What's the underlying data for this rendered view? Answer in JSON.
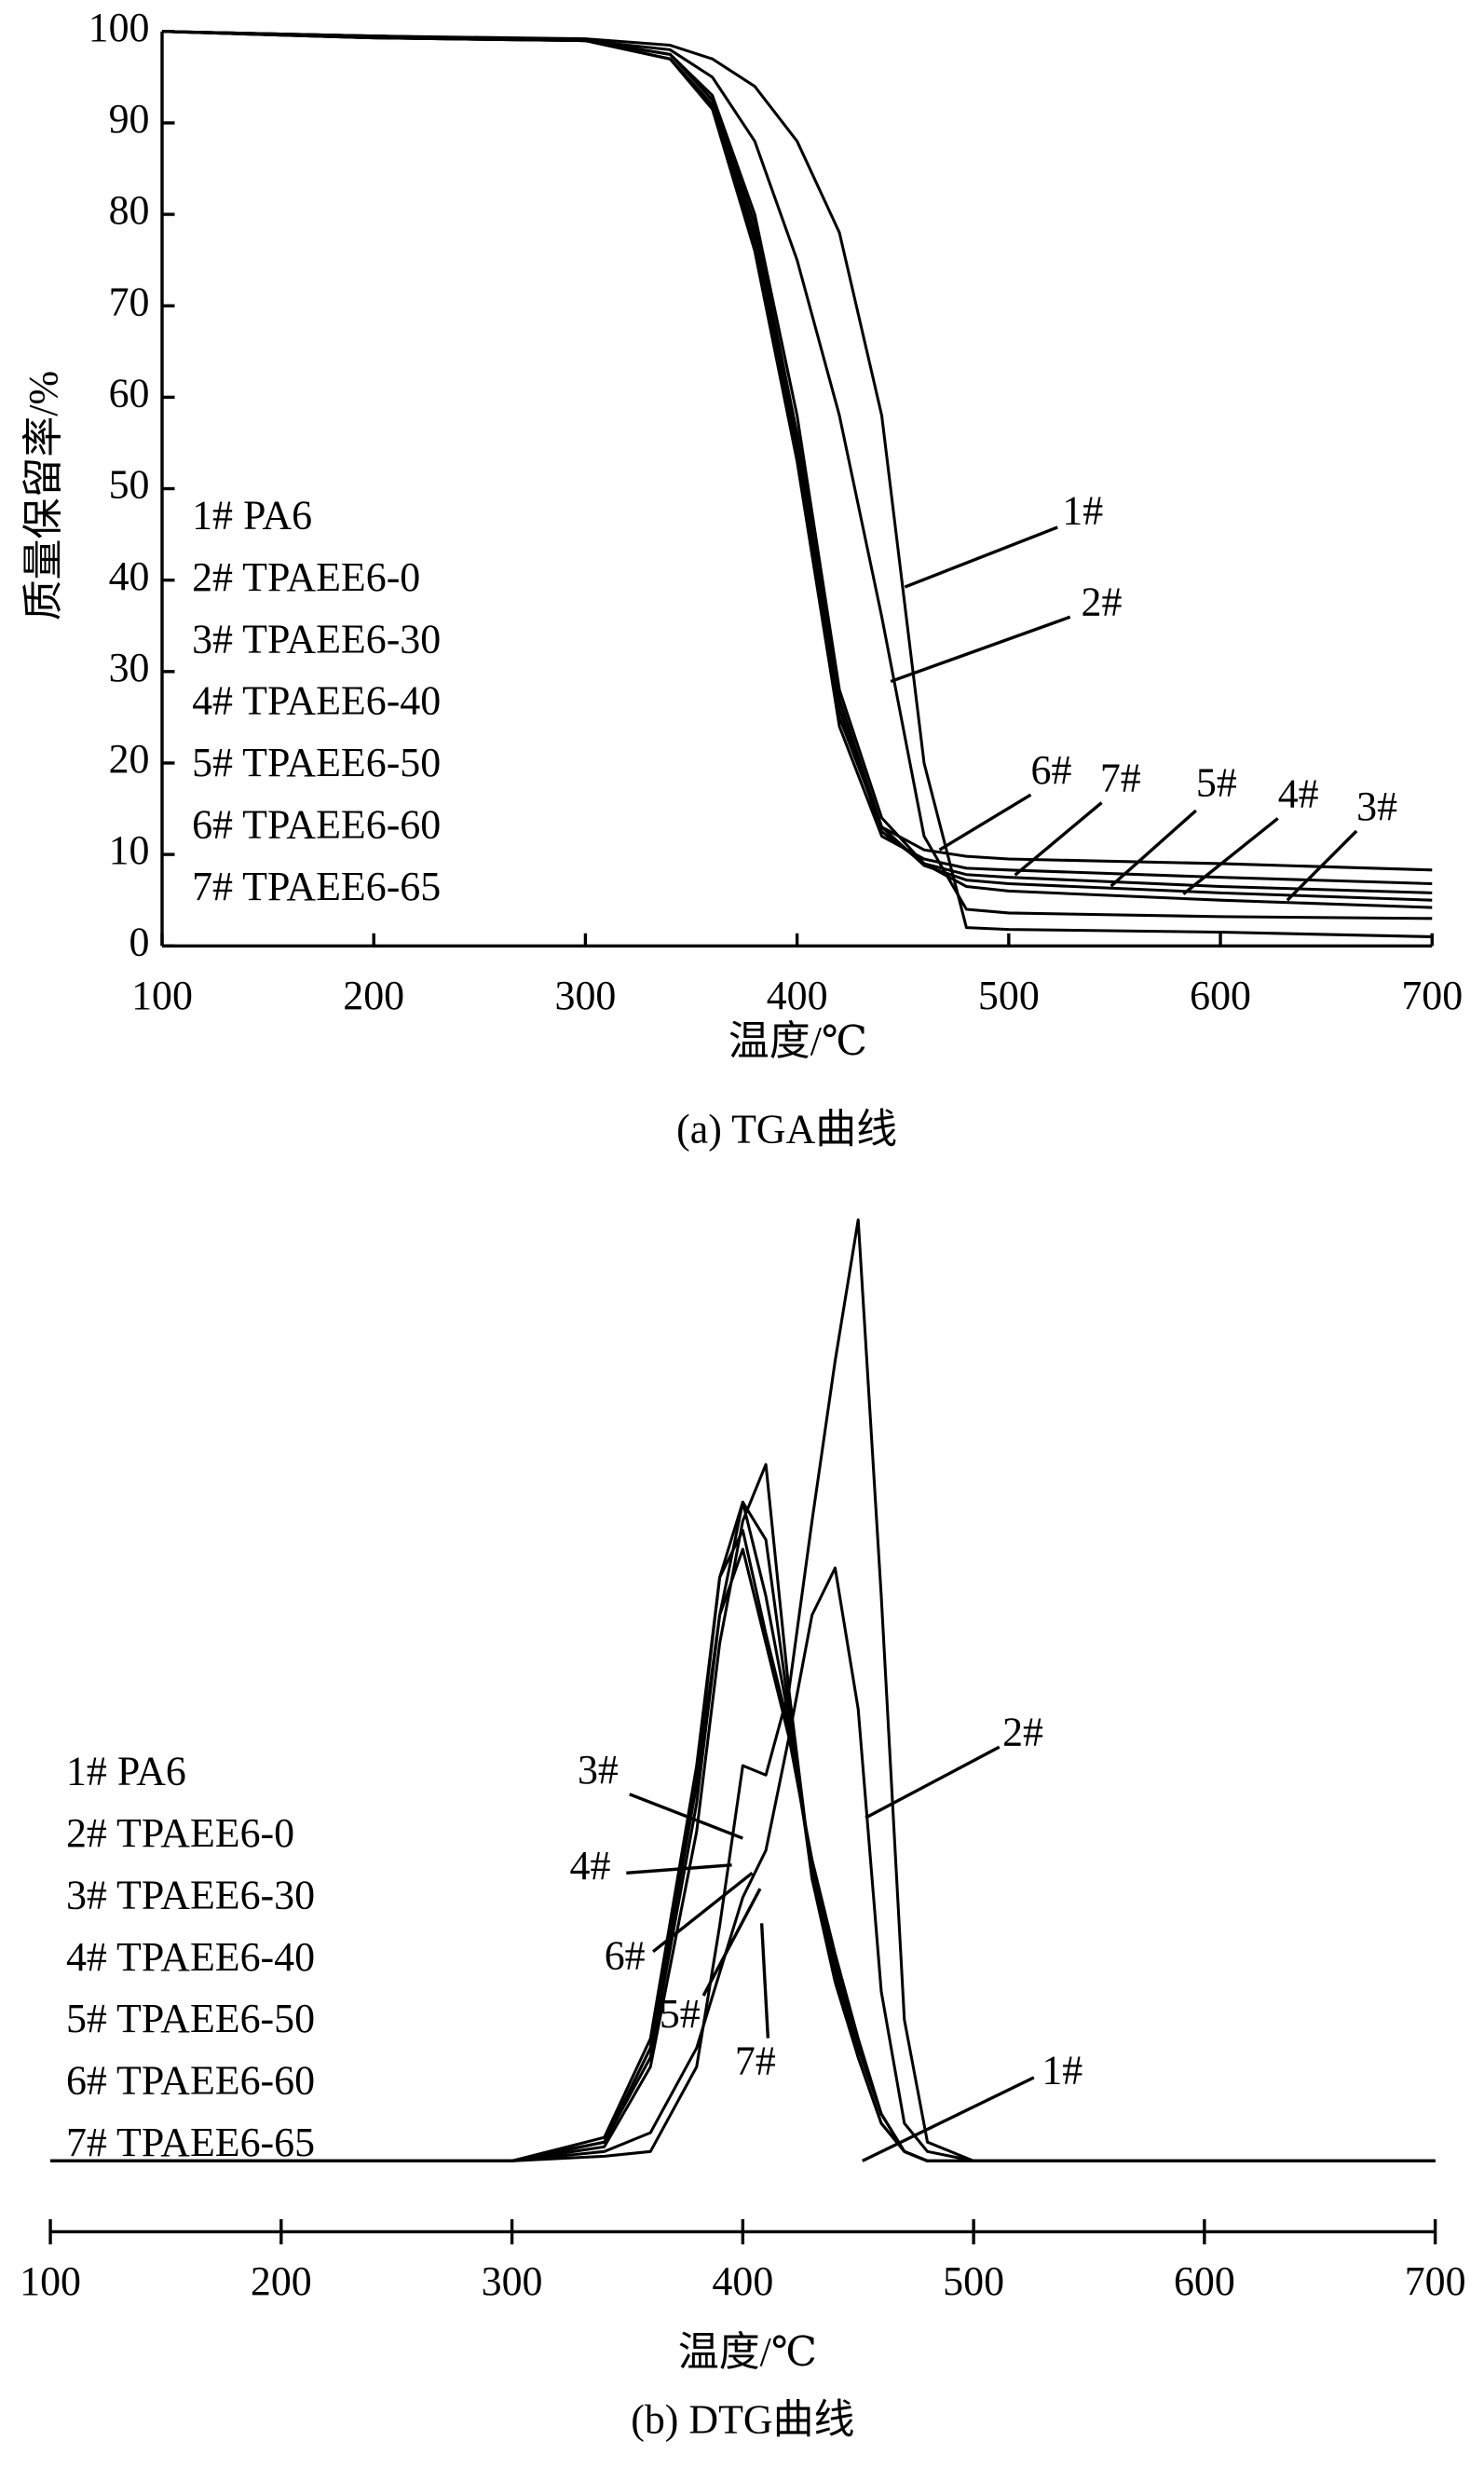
{
  "chart_data": [
    {
      "type": "line",
      "caption": "(a) TGA曲线",
      "x_label": "温度/℃",
      "y_label": "质量保留率/%",
      "x": [
        100,
        200,
        300,
        340,
        360,
        380,
        400,
        420,
        440,
        460,
        480,
        500,
        600,
        700
      ],
      "xlim": [
        100,
        700
      ],
      "xticks": [
        100,
        200,
        300,
        400,
        500,
        600,
        700
      ],
      "ylim": [
        0,
        100
      ],
      "yticks": [
        0,
        10,
        20,
        30,
        40,
        50,
        60,
        70,
        80,
        90,
        100
      ],
      "series": [
        {
          "name": "1# PA6",
          "color": "#000000",
          "values": [
            100,
            99.5,
            99.2,
            98.5,
            97,
            94,
            88,
            78,
            58,
            20,
            2,
            1.8,
            1.5,
            1
          ]
        },
        {
          "name": "2# TPAEE6-0",
          "color": "#000000",
          "values": [
            100,
            99.5,
            99,
            98,
            95,
            88,
            75,
            58,
            36,
            12,
            4,
            3.6,
            3.2,
            3
          ]
        },
        {
          "name": "3# TPAEE6-30",
          "color": "#000000",
          "values": [
            100,
            99.5,
            99,
            97.5,
            93,
            80,
            58,
            28,
            14,
            9,
            6.5,
            6,
            5,
            4.2
          ]
        },
        {
          "name": "4# TPAEE6-40",
          "color": "#000000",
          "values": [
            100,
            99.5,
            99,
            97.5,
            92.5,
            79,
            56,
            27,
            13,
            8.8,
            7.2,
            6.8,
            5.8,
            5
          ]
        },
        {
          "name": "5# TPAEE6-50",
          "color": "#000000",
          "values": [
            100,
            99.3,
            99,
            97,
            92,
            78,
            55,
            26,
            12.5,
            9,
            7.8,
            7.5,
            6.5,
            5.8
          ]
        },
        {
          "name": "6# TPAEE6-60",
          "color": "#000000",
          "values": [
            100,
            99.3,
            99,
            97,
            92,
            77,
            54,
            25,
            13,
            10.5,
            9.8,
            9.5,
            9,
            8.3
          ]
        },
        {
          "name": "7# TPAEE6-65",
          "color": "#000000",
          "values": [
            100,
            99.3,
            99,
            97,
            91.5,
            76,
            53,
            24,
            12,
            9.5,
            8.5,
            8.3,
            7.5,
            6.8
          ]
        }
      ],
      "annotations": [
        "1#",
        "2#",
        "6#",
        "7#",
        "5#",
        "4#",
        "3#"
      ]
    },
    {
      "type": "line",
      "caption": "(b) DTG曲线",
      "x_label": "温度/℃",
      "x": [
        100,
        300,
        340,
        360,
        380,
        390,
        400,
        410,
        420,
        430,
        440,
        450,
        460,
        470,
        480,
        500,
        700
      ],
      "xlim": [
        100,
        700
      ],
      "xticks": [
        100,
        200,
        300,
        400,
        500,
        600,
        700
      ],
      "ylim": [
        -100,
        0
      ],
      "series": [
        {
          "name": "1# PA6",
          "color": "#000000",
          "values": [
            0,
            0,
            -0.5,
            -1,
            -10,
            -25,
            -42,
            -41,
            -50,
            -68,
            -85,
            -100,
            -60,
            -15,
            -2,
            0,
            0
          ]
        },
        {
          "name": "2# TPAEE6-0",
          "color": "#000000",
          "values": [
            0,
            0,
            -1,
            -3,
            -12,
            -20,
            -28,
            -33,
            -45,
            -58,
            -63,
            -48,
            -18,
            -4,
            -1,
            0,
            0
          ]
        },
        {
          "name": "3# TPAEE6-30",
          "color": "#000000",
          "values": [
            0,
            0,
            -2,
            -12,
            -40,
            -58,
            -65,
            -55,
            -45,
            -32,
            -22,
            -13,
            -5,
            -1,
            0,
            0,
            0
          ]
        },
        {
          "name": "4# TPAEE6-40",
          "color": "#000000",
          "values": [
            0,
            0,
            -2.5,
            -13,
            -42,
            -62,
            -67,
            -56,
            -46,
            -31,
            -21,
            -12,
            -5,
            -1,
            0,
            0,
            0
          ]
        },
        {
          "name": "5# TPAEE6-50",
          "color": "#000000",
          "values": [
            0,
            0,
            -2,
            -11,
            -38,
            -58,
            -70,
            -66,
            -48,
            -30,
            -20,
            -11,
            -4,
            -1,
            0,
            0,
            0
          ]
        },
        {
          "name": "6# TPAEE6-60",
          "color": "#000000",
          "values": [
            0,
            0,
            -2,
            -12,
            -41,
            -62,
            -70,
            -60,
            -47,
            -31,
            -21,
            -12,
            -5,
            -1,
            0,
            0,
            0
          ]
        },
        {
          "name": "7# TPAEE6-65",
          "color": "#000000",
          "values": [
            0,
            0,
            -1.5,
            -10,
            -35,
            -55,
            -68,
            -74,
            -50,
            -30,
            -19,
            -11,
            -4,
            -1,
            0,
            0,
            0
          ]
        }
      ],
      "annotations": [
        "2#",
        "3#",
        "4#",
        "6#",
        "5#",
        "7#",
        "1#"
      ]
    }
  ]
}
